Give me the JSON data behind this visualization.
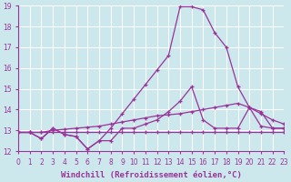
{
  "bg_color": "#cce8ec",
  "grid_color": "#ffffff",
  "line_color": "#993399",
  "x_min": 0,
  "x_max": 23,
  "y_min": 12,
  "y_max": 19,
  "xlabel": "Windchill (Refroidissement éolien,°C)",
  "xlabel_fontsize": 6.5,
  "tick_fontsize": 5.5,
  "series": [
    {
      "x": [
        0,
        1,
        2,
        3,
        4,
        5,
        6,
        7,
        8,
        9,
        10,
        11,
        12,
        13,
        14,
        15,
        16,
        17,
        18,
        19,
        20,
        21,
        22,
        23
      ],
      "y": [
        12.9,
        12.9,
        12.9,
        12.9,
        12.9,
        12.9,
        12.9,
        12.9,
        12.9,
        12.9,
        12.9,
        12.9,
        12.9,
        12.9,
        12.9,
        12.9,
        12.9,
        12.9,
        12.9,
        12.9,
        12.9,
        12.9,
        12.9,
        12.9
      ]
    },
    {
      "x": [
        0,
        1,
        2,
        3,
        4,
        5,
        6,
        7,
        8,
        9,
        10,
        11,
        12,
        13,
        14,
        15,
        16,
        17,
        18,
        19,
        20,
        21,
        22,
        23
      ],
      "y": [
        12.9,
        12.9,
        12.9,
        13.0,
        13.05,
        13.1,
        13.15,
        13.2,
        13.3,
        13.4,
        13.5,
        13.6,
        13.7,
        13.75,
        13.8,
        13.9,
        14.0,
        14.1,
        14.2,
        14.3,
        14.1,
        13.8,
        13.5,
        13.3
      ]
    },
    {
      "x": [
        0,
        1,
        2,
        3,
        4,
        5,
        6,
        7,
        8,
        9,
        10,
        11,
        12,
        13,
        14,
        15,
        16,
        17,
        18,
        19,
        20,
        21,
        22,
        23
      ],
      "y": [
        12.9,
        12.9,
        12.6,
        13.1,
        12.8,
        12.7,
        12.1,
        12.5,
        12.5,
        13.1,
        13.1,
        13.3,
        13.5,
        13.9,
        14.4,
        15.1,
        13.5,
        13.1,
        13.1,
        13.1,
        14.1,
        13.9,
        13.1,
        13.1
      ]
    },
    {
      "x": [
        0,
        1,
        2,
        3,
        4,
        5,
        6,
        7,
        8,
        9,
        10,
        11,
        12,
        13,
        14,
        15,
        16,
        17,
        18,
        19,
        20,
        21,
        22,
        23
      ],
      "y": [
        12.9,
        12.9,
        12.6,
        13.1,
        12.8,
        12.7,
        12.1,
        12.5,
        13.1,
        13.8,
        14.5,
        15.2,
        15.9,
        16.6,
        18.95,
        18.95,
        18.8,
        17.7,
        17.0,
        15.1,
        14.1,
        13.2,
        13.1,
        13.1
      ]
    }
  ]
}
